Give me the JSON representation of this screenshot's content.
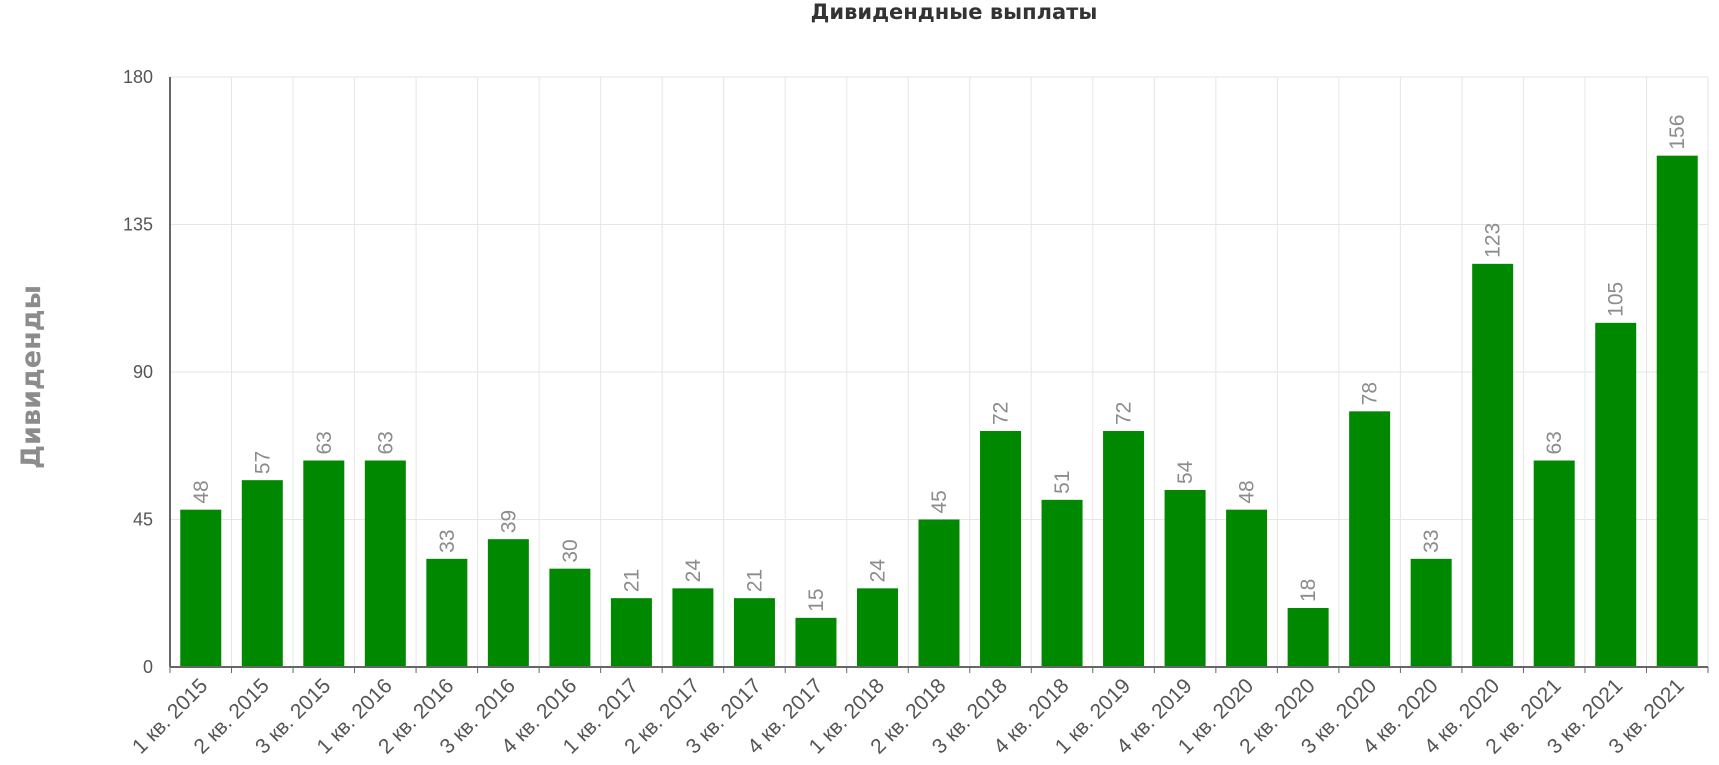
{
  "chart_data": {
    "type": "bar",
    "title": "Дивидендные выплаты",
    "xlabel": "",
    "ylabel": "Дивиденды",
    "ylim": [
      0,
      180
    ],
    "yticks": [
      0,
      45,
      90,
      135,
      180
    ],
    "grid": true,
    "bar_color": "#008800",
    "categories": [
      "1 кв. 2015",
      "2 кв. 2015",
      "3 кв. 2015",
      "1 кв. 2016",
      "2 кв. 2016",
      "3 кв. 2016",
      "4 кв. 2016",
      "1 кв. 2017",
      "2 кв. 2017",
      "3 кв. 2017",
      "4 кв. 2017",
      "1 кв. 2018",
      "2 кв. 2018",
      "3 кв. 2018",
      "4 кв. 2018",
      "1 кв. 2019",
      "4 кв. 2019",
      "1 кв. 2020",
      "2 кв. 2020",
      "3 кв. 2020",
      "4 кв. 2020",
      "4 кв. 2020",
      "2 кв. 2021",
      "3 кв. 2021",
      "3 кв. 2021"
    ],
    "values": [
      48,
      57,
      63,
      63,
      33,
      39,
      30,
      21,
      24,
      21,
      15,
      24,
      45,
      72,
      51,
      72,
      54,
      48,
      18,
      78,
      33,
      123,
      63,
      105,
      156
    ]
  }
}
